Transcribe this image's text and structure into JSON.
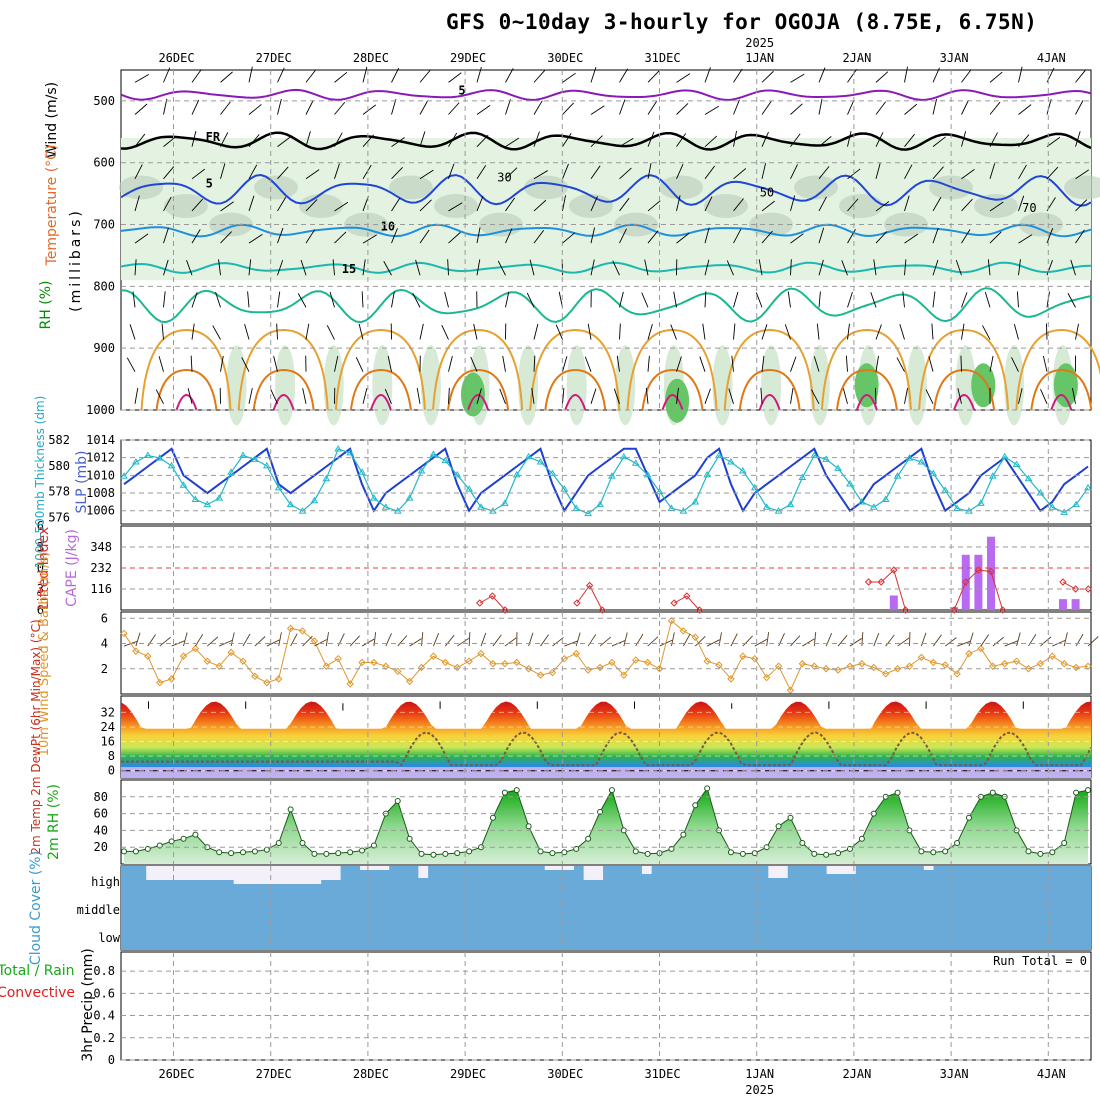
{
  "title": "GFS 0~10day 3-hourly for OGOJA (8.75E, 6.75N)",
  "time_axis": {
    "year_label": "2025",
    "day_labels": [
      "26DEC",
      "27DEC",
      "28DEC",
      "29DEC",
      "30DEC",
      "31DEC",
      "1JAN",
      "2JAN",
      "3JAN",
      "4JAN"
    ]
  },
  "chart_data": [
    {
      "id": "upper-air",
      "type": "heatmap",
      "title": "",
      "ylabels": [
        "Wind (m/s)",
        "Temperature (°C)",
        "RH (%)",
        "(millibars)"
      ],
      "ylim": [
        1000,
        450
      ],
      "yticks": [
        500,
        600,
        700,
        800,
        900,
        1000
      ],
      "isotherm_labels": [
        {
          "text": "5",
          "value": -5,
          "color": "#8a1ab8"
        },
        {
          "text": "FR",
          "value": 0,
          "color": "#000000"
        },
        {
          "text": "5",
          "value": 5,
          "color": "#1f47d6"
        },
        {
          "text": "10",
          "value": 10,
          "color": "#1e90e0"
        },
        {
          "text": "15",
          "value": 15,
          "color": "#1ab8b0"
        }
      ],
      "rh_contour_labels": [
        "30",
        "50",
        "70"
      ],
      "isotherms": [
        {
          "name": "-5",
          "color": "#8a1ab8",
          "mean_hpa": 490,
          "amp": 6
        },
        {
          "name": "FR",
          "color": "#000000",
          "mean_hpa": 565,
          "amp": 10
        },
        {
          "name": "5",
          "color": "#1f47d6",
          "mean_hpa": 645,
          "amp": 18
        },
        {
          "name": "10",
          "color": "#1e90e0",
          "mean_hpa": 710,
          "amp": 7
        },
        {
          "name": "15",
          "color": "#1ab8b0",
          "mean_hpa": 770,
          "amp": 6
        },
        {
          "name": "20",
          "color": "#1ab890",
          "mean_hpa": 830,
          "amp": 20
        }
      ]
    },
    {
      "id": "slp-thickness",
      "type": "line",
      "ylabel_left": "1000-500mb Thickness (dm)",
      "ylabel_right": "SLP (mb)",
      "left_ticks": [
        576,
        578,
        580,
        582
      ],
      "right_ticks": [
        1006,
        1008,
        1010,
        1012,
        1014
      ],
      "left_lim": [
        575.5,
        582
      ],
      "right_lim": [
        1004.5,
        1014
      ],
      "series": [
        {
          "name": "SLP",
          "color": "#1f3fd0",
          "values": [
            1009,
            1010,
            1011,
            1012,
            1013,
            1010,
            1009,
            1008,
            1009,
            1010,
            1011,
            1012,
            1013,
            1009,
            1008,
            1009,
            1010,
            1011,
            1012,
            1013,
            1009,
            1006,
            1008,
            1009,
            1010,
            1011,
            1012,
            1013,
            1009,
            1006,
            1008,
            1009,
            1010,
            1011,
            1012,
            1013,
            1009,
            1006,
            1008,
            1010,
            1011,
            1012,
            1013,
            1013,
            1010,
            1007,
            1008,
            1009,
            1010,
            1012,
            1013,
            1009,
            1006,
            1008,
            1009,
            1010,
            1011,
            1012,
            1013,
            1010,
            1008,
            1006,
            1007,
            1009,
            1010,
            1011,
            1012,
            1013,
            1009,
            1006,
            1007,
            1008,
            1010,
            1011,
            1012,
            1010,
            1008,
            1006,
            1007,
            1009,
            1010,
            1011
          ]
        },
        {
          "name": "Thickness",
          "color": "#20b8c8",
          "values": [
            579.2,
            580.3,
            580.8,
            580.6,
            580.0,
            578.5,
            577.4,
            577.0,
            577.5,
            579.5,
            580.8,
            580.5,
            580.0,
            578.3,
            577.0,
            576.5,
            577.3,
            579.0,
            581.3,
            581.0,
            579.5,
            577.5,
            576.8,
            576.5,
            577.5,
            579.6,
            580.9,
            580.4,
            579.3,
            578.2,
            576.8,
            576.5,
            577.1,
            579.3,
            580.7,
            580.3,
            579.4,
            578.2,
            576.7,
            576.3,
            577.0,
            579.2,
            580.7,
            580.2,
            579.3,
            578.0,
            576.7,
            576.5,
            577.2,
            579.3,
            580.8,
            580.3,
            579.6,
            578.3,
            576.8,
            576.5,
            577.0,
            579.1,
            580.8,
            580.5,
            579.8,
            578.6,
            577.2,
            576.8,
            577.4,
            579.2,
            580.6,
            580.3,
            579.4,
            578.1,
            576.7,
            576.5,
            577.1,
            579.2,
            580.7,
            580.1,
            579.0,
            577.9,
            576.8,
            576.4,
            577.0,
            578.3
          ]
        }
      ]
    },
    {
      "id": "cape-li",
      "type": "bar",
      "ylabel_left": "Lifted Index",
      "ylabel_right": "CAPE (J/kg)",
      "cape_ticks": [
        116,
        232,
        348
      ],
      "li_ticks": [
        6,
        3,
        0,
        -3,
        -6
      ],
      "cape_bars": [
        {
          "day": 7.38,
          "value": 80
        },
        {
          "day": 8.0,
          "value": 15
        },
        {
          "day": 8.12,
          "value": 305
        },
        {
          "day": 8.25,
          "value": 305
        },
        {
          "day": 8.38,
          "value": 405
        },
        {
          "day": 9.12,
          "value": 60
        },
        {
          "day": 9.25,
          "value": 60
        }
      ],
      "li_segments": [
        [
          [
            3.12,
            5.0
          ],
          [
            3.25,
            4.0
          ],
          [
            3.38,
            6.0
          ]
        ],
        [
          [
            4.12,
            5.0
          ],
          [
            4.25,
            2.5
          ],
          [
            4.38,
            6.0
          ]
        ],
        [
          [
            5.12,
            5.0
          ],
          [
            5.25,
            4.0
          ],
          [
            5.38,
            6.0
          ]
        ],
        [
          [
            7.12,
            2.0
          ],
          [
            7.25,
            2.0
          ],
          [
            7.38,
            0.3
          ],
          [
            7.5,
            6.0
          ]
        ],
        [
          [
            8.0,
            6.0
          ],
          [
            8.12,
            2.0
          ],
          [
            8.25,
            0.3
          ],
          [
            8.38,
            0.5
          ],
          [
            8.5,
            6.0
          ]
        ],
        [
          [
            9.12,
            2.0
          ],
          [
            9.25,
            3.0
          ],
          [
            9.38,
            3.0
          ]
        ]
      ]
    },
    {
      "id": "wind10m",
      "type": "line",
      "ylabel": "10m Wind Speed & Barbs (m/s)",
      "yticks": [
        2,
        4,
        6
      ],
      "ylim": [
        0,
        6.5
      ],
      "series": [
        {
          "name": "10m Wind Speed",
          "color": "#e0962a",
          "values": [
            4.8,
            3.4,
            3.0,
            0.9,
            1.2,
            3.0,
            3.6,
            2.6,
            2.2,
            3.3,
            2.6,
            1.4,
            0.9,
            1.2,
            5.2,
            5.0,
            4.2,
            2.2,
            2.8,
            0.8,
            2.5,
            2.5,
            2.2,
            1.8,
            1.0,
            2.1,
            3.0,
            2.5,
            2.1,
            2.6,
            3.2,
            2.4,
            2.4,
            2.5,
            2.0,
            1.5,
            1.7,
            2.8,
            3.2,
            1.9,
            2.1,
            2.5,
            1.5,
            2.7,
            2.5,
            2.0,
            5.8,
            5.0,
            4.5,
            2.6,
            2.3,
            1.2,
            3.0,
            2.8,
            1.3,
            2.2,
            0.3,
            2.4,
            2.2,
            2.0,
            1.9,
            2.2,
            2.4,
            2.1,
            1.6,
            2.0,
            2.2,
            2.9,
            2.5,
            2.3,
            1.6,
            3.2,
            3.6,
            2.2,
            2.4,
            2.6,
            2.0,
            2.4,
            3.0,
            2.4,
            2.1,
            2.2
          ]
        }
      ]
    },
    {
      "id": "temp2m",
      "type": "area",
      "ylabel": "2m Temp 2m DewPt (6hr Min/Max) (°C)",
      "yticks": [
        0,
        8,
        16,
        24,
        32
      ],
      "ylim": [
        -4,
        41
      ],
      "temp_max": [
        38,
        38,
        37,
        38,
        38,
        38,
        37,
        38,
        38,
        38
      ],
      "temp_min": [
        22,
        22,
        21,
        22,
        22,
        22,
        22,
        22,
        22,
        22
      ],
      "dewpt_note": "dewpoint dashed line"
    },
    {
      "id": "rh2m",
      "type": "area",
      "ylabel": "2m RH (%)",
      "yticks": [
        20,
        40,
        60,
        80
      ],
      "ylim": [
        0,
        100
      ],
      "series": [
        {
          "name": "2m RH",
          "color": "#2fa82f",
          "values": [
            15,
            15,
            18,
            22,
            27,
            30,
            35,
            20,
            14,
            13,
            14,
            15,
            17,
            25,
            65,
            25,
            12,
            12,
            13,
            14,
            16,
            22,
            60,
            75,
            30,
            12,
            11,
            12,
            13,
            15,
            20,
            55,
            85,
            88,
            45,
            15,
            13,
            14,
            18,
            30,
            62,
            88,
            40,
            15,
            12,
            13,
            18,
            35,
            70,
            90,
            40,
            14,
            12,
            13,
            20,
            45,
            55,
            25,
            12,
            11,
            13,
            18,
            30,
            60,
            80,
            85,
            40,
            15,
            14,
            15,
            25,
            55,
            80,
            85,
            80,
            40,
            15,
            12,
            14,
            25,
            85,
            88
          ]
        }
      ]
    },
    {
      "id": "cloud",
      "type": "bar",
      "ylabel": "Cloud Cover (%)",
      "levels": [
        "high",
        "middle",
        "low"
      ]
    },
    {
      "id": "precip",
      "type": "bar",
      "ylabel_left": "Total / Rain",
      "ylabel_left2": "Convective",
      "ylabel": "3hr Precip (mm)",
      "yticks": [
        0,
        0.2,
        0.4,
        0.6,
        0.8
      ],
      "ylim": [
        0,
        0.9
      ],
      "run_total_label": "Run Total = 0",
      "values": []
    }
  ]
}
